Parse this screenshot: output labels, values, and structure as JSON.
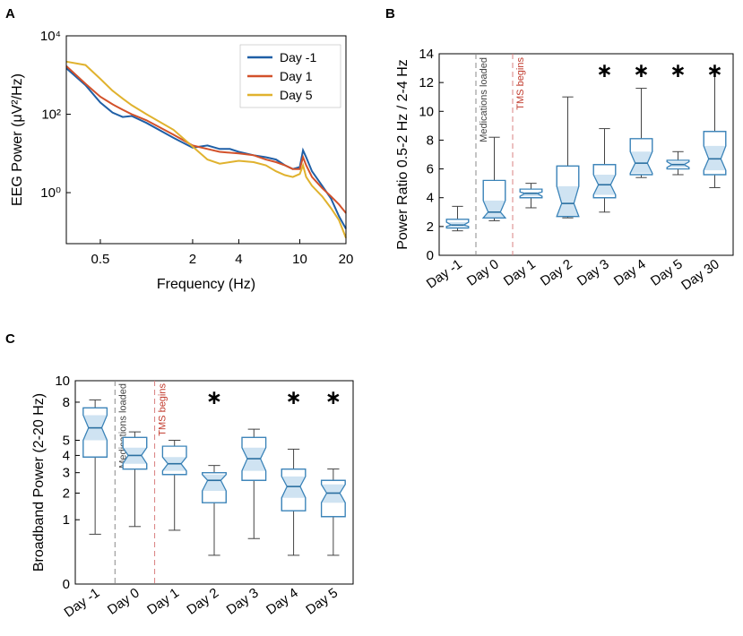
{
  "figure": {
    "panels": [
      "A",
      "B",
      "C"
    ]
  },
  "chart_data": [
    {
      "panel": "A",
      "type": "line",
      "xscale": "log",
      "yscale": "log",
      "xlabel": "Frequency (Hz)",
      "ylabel": "EEG Power (μV²/Hz)",
      "xlim": [
        0.3,
        20
      ],
      "ylim": [
        0.05,
        10000
      ],
      "xticks": [
        0.5,
        2,
        4,
        10,
        20
      ],
      "xtick_labels": [
        "0.5",
        "2",
        "4",
        "10",
        "20"
      ],
      "yticks": [
        1,
        100,
        10000
      ],
      "ytick_labels": [
        "10⁰",
        "10²",
        "10⁴"
      ],
      "legend_position": "top-right",
      "series": [
        {
          "name": "Day -1",
          "color": "#1f5fa6",
          "points": [
            [
              0.3,
              1500
            ],
            [
              0.4,
              550
            ],
            [
              0.5,
              200
            ],
            [
              0.6,
              110
            ],
            [
              0.7,
              85
            ],
            [
              0.8,
              90
            ],
            [
              1.0,
              60
            ],
            [
              1.5,
              25
            ],
            [
              2.0,
              14
            ],
            [
              2.5,
              16
            ],
            [
              3.0,
              13
            ],
            [
              3.5,
              13
            ],
            [
              4.0,
              11
            ],
            [
              5.0,
              9
            ],
            [
              6.0,
              8
            ],
            [
              7.0,
              7
            ],
            [
              8.0,
              5
            ],
            [
              9.0,
              4
            ],
            [
              10.0,
              4.5
            ],
            [
              10.5,
              12
            ],
            [
              11.0,
              8
            ],
            [
              12.0,
              3.5
            ],
            [
              14.0,
              1.5
            ],
            [
              16.0,
              0.7
            ],
            [
              18.0,
              0.25
            ],
            [
              20.0,
              0.12
            ]
          ]
        },
        {
          "name": "Day 1",
          "color": "#d2512a",
          "points": [
            [
              0.3,
              1700
            ],
            [
              0.4,
              600
            ],
            [
              0.5,
              280
            ],
            [
              0.6,
              180
            ],
            [
              0.7,
              130
            ],
            [
              0.8,
              100
            ],
            [
              1.0,
              70
            ],
            [
              1.5,
              30
            ],
            [
              2.0,
              16
            ],
            [
              2.5,
              13
            ],
            [
              3.0,
              11
            ],
            [
              4.0,
              10
            ],
            [
              5.0,
              9
            ],
            [
              6.0,
              7
            ],
            [
              7.0,
              6
            ],
            [
              8.0,
              5
            ],
            [
              9.0,
              4
            ],
            [
              10.0,
              4
            ],
            [
              10.5,
              8
            ],
            [
              11.0,
              5
            ],
            [
              12.0,
              2.5
            ],
            [
              14.0,
              1.3
            ],
            [
              16.0,
              0.8
            ],
            [
              18.0,
              0.5
            ],
            [
              20.0,
              0.3
            ]
          ]
        },
        {
          "name": "Day 5",
          "color": "#e0b22e",
          "points": [
            [
              0.3,
              2200
            ],
            [
              0.4,
              1800
            ],
            [
              0.5,
              800
            ],
            [
              0.6,
              400
            ],
            [
              0.7,
              250
            ],
            [
              0.8,
              170
            ],
            [
              1.0,
              100
            ],
            [
              1.5,
              40
            ],
            [
              2.0,
              15
            ],
            [
              2.5,
              7
            ],
            [
              3.0,
              5.5
            ],
            [
              3.5,
              6
            ],
            [
              4.0,
              6.5
            ],
            [
              5.0,
              6
            ],
            [
              6.0,
              5
            ],
            [
              7.0,
              3.5
            ],
            [
              8.0,
              2.8
            ],
            [
              9.0,
              2.5
            ],
            [
              10.0,
              3
            ],
            [
              10.5,
              5
            ],
            [
              11.0,
              2.5
            ],
            [
              12.0,
              1.5
            ],
            [
              14.0,
              0.8
            ],
            [
              16.0,
              0.4
            ],
            [
              18.0,
              0.2
            ],
            [
              20.0,
              0.07
            ]
          ]
        }
      ]
    },
    {
      "panel": "B",
      "type": "box",
      "ylabel": "Power Ratio 0.5-2 Hz / 2-4 Hz",
      "ylim": [
        0,
        14
      ],
      "yticks": [
        0,
        2,
        4,
        6,
        8,
        10,
        12,
        14
      ],
      "categories": [
        "Day -1",
        "Day 0",
        "Day 1",
        "Day 2",
        "Day 3",
        "Day 4",
        "Day 5",
        "Day 30"
      ],
      "boxes": [
        {
          "min": 1.7,
          "q1": 1.9,
          "median": 2.1,
          "q3": 2.5,
          "max": 3.4,
          "notch_low": 2.0,
          "notch_high": 2.3,
          "significant": false
        },
        {
          "min": 2.4,
          "q1": 2.6,
          "median": 3.0,
          "q3": 5.2,
          "max": 8.2,
          "notch_low": 2.6,
          "notch_high": 3.8,
          "significant": false
        },
        {
          "min": 3.3,
          "q1": 4.0,
          "median": 4.3,
          "q3": 4.6,
          "max": 5.0,
          "notch_low": 4.1,
          "notch_high": 4.4,
          "significant": false
        },
        {
          "min": 2.6,
          "q1": 2.7,
          "median": 3.6,
          "q3": 6.2,
          "max": 11.0,
          "notch_low": 2.7,
          "notch_high": 4.8,
          "significant": false
        },
        {
          "min": 3.0,
          "q1": 4.0,
          "median": 4.9,
          "q3": 6.3,
          "max": 8.8,
          "notch_low": 4.2,
          "notch_high": 5.6,
          "significant": true
        },
        {
          "min": 5.4,
          "q1": 5.6,
          "median": 6.4,
          "q3": 8.1,
          "max": 11.6,
          "notch_low": 5.7,
          "notch_high": 7.2,
          "significant": true
        },
        {
          "min": 5.6,
          "q1": 6.0,
          "median": 6.3,
          "q3": 6.6,
          "max": 7.2,
          "notch_low": 6.1,
          "notch_high": 6.5,
          "significant": true
        },
        {
          "min": 4.7,
          "q1": 5.6,
          "median": 6.7,
          "q3": 8.6,
          "max": 12.9,
          "notch_low": 5.9,
          "notch_high": 7.6,
          "significant": true
        }
      ],
      "annotations": [
        {
          "text": "Medications loaded",
          "after_category": "Day -1",
          "color": "#444444"
        },
        {
          "text": "TMS begins",
          "after_category": "Day 0",
          "color": "#c0392b"
        }
      ],
      "star": "∗"
    },
    {
      "panel": "C",
      "type": "box",
      "yscale": "sqrt",
      "ylabel": "Broadband Power (2-20 Hz)",
      "ylim": [
        0,
        10
      ],
      "yticks": [
        0,
        1,
        2,
        3,
        4,
        5,
        8,
        10
      ],
      "categories": [
        "Day -1",
        "Day 0",
        "Day 1",
        "Day 2",
        "Day 3",
        "Day 4",
        "Day 5"
      ],
      "boxes": [
        {
          "min": 0.6,
          "q1": 3.9,
          "median": 5.9,
          "q3": 7.5,
          "max": 8.2,
          "notch_low": 5.0,
          "notch_high": 6.9,
          "significant": false
        },
        {
          "min": 0.8,
          "q1": 3.2,
          "median": 4.0,
          "q3": 5.2,
          "max": 5.6,
          "notch_low": 3.5,
          "notch_high": 4.5,
          "significant": false
        },
        {
          "min": 0.7,
          "q1": 2.9,
          "median": 3.5,
          "q3": 4.6,
          "max": 5.0,
          "notch_low": 3.1,
          "notch_high": 3.9,
          "significant": false
        },
        {
          "min": 0.2,
          "q1": 1.6,
          "median": 2.6,
          "q3": 3.0,
          "max": 3.4,
          "notch_low": 2.1,
          "notch_high": 2.9,
          "significant": true
        },
        {
          "min": 0.5,
          "q1": 2.6,
          "median": 3.8,
          "q3": 5.2,
          "max": 5.8,
          "notch_low": 3.1,
          "notch_high": 4.5,
          "significant": false
        },
        {
          "min": 0.2,
          "q1": 1.3,
          "median": 2.3,
          "q3": 3.2,
          "max": 4.4,
          "notch_low": 1.8,
          "notch_high": 2.8,
          "significant": true
        },
        {
          "min": 0.2,
          "q1": 1.1,
          "median": 2.0,
          "q3": 2.6,
          "max": 3.2,
          "notch_low": 1.6,
          "notch_high": 2.4,
          "significant": true
        }
      ],
      "annotations": [
        {
          "text": "Medications loaded",
          "after_category": "Day -1",
          "color": "#444444"
        },
        {
          "text": "TMS begins",
          "after_category": "Day 0",
          "color": "#c0392b"
        }
      ],
      "star": "∗"
    }
  ]
}
